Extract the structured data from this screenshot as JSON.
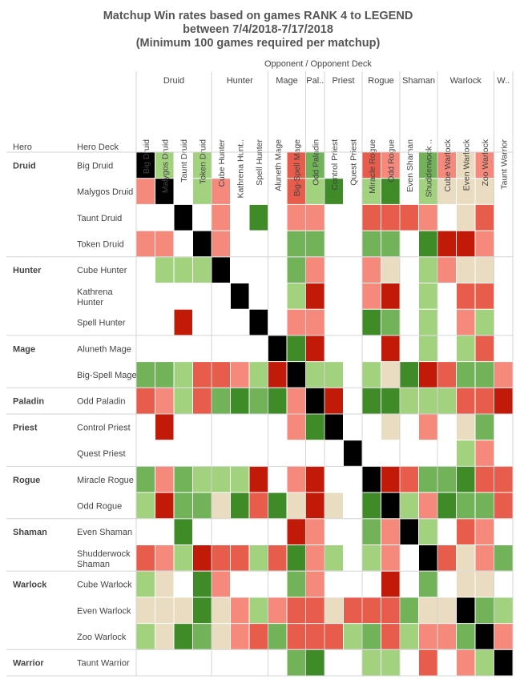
{
  "title": {
    "line1": "Matchup Win rates based on games RANK 4 to LEGEND",
    "line2": "between 7/4/2018-7/17/2018",
    "line3": "(Minimum 100 games required per matchup)"
  },
  "opponent_header": "Opponent  /  Opponent Deck",
  "row_headers": {
    "hero": "Hero",
    "deck": "Hero Deck"
  },
  "chart_data": {
    "type": "heatmap",
    "column_groups": [
      {
        "label": "Druid",
        "count": 4
      },
      {
        "label": "Hunter",
        "count": 3
      },
      {
        "label": "Mage",
        "count": 2
      },
      {
        "label": "Pal..",
        "count": 1
      },
      {
        "label": "Priest",
        "count": 2
      },
      {
        "label": "Rogue",
        "count": 2
      },
      {
        "label": "Shaman",
        "count": 2
      },
      {
        "label": "Warlock",
        "count": 3
      },
      {
        "label": "W..",
        "count": 1
      }
    ],
    "columns": [
      "Big Druid",
      "Malygos Druid",
      "Taunt Druid",
      "Token Druid",
      "Cube Hunter",
      "Kathrena Hunt..",
      "Spell Hunter",
      "Aluneth Mage",
      "Big-Spell Mage",
      "Odd Paladin",
      "Control Priest",
      "Quest Priest",
      "Miracle Rogue",
      "Odd Rogue",
      "Even Shaman",
      "Shudderwock ..",
      "Cube Warlock",
      "Even Warlock",
      "Zoo Warlock",
      "Taunt Warrior"
    ],
    "row_groups": [
      {
        "label": "Druid",
        "count": 4
      },
      {
        "label": "Hunter",
        "count": 3
      },
      {
        "label": "Mage",
        "count": 2
      },
      {
        "label": "Paladin",
        "count": 1
      },
      {
        "label": "Priest",
        "count": 2
      },
      {
        "label": "Rogue",
        "count": 2
      },
      {
        "label": "Shaman",
        "count": 2
      },
      {
        "label": "Warlock",
        "count": 3
      },
      {
        "label": "Warrior",
        "count": 1
      }
    ],
    "rows": [
      [
        "Big Druid"
      ],
      [
        "Malygos Druid"
      ],
      [
        "Taunt Druid"
      ],
      [
        "Token Druid"
      ],
      [
        "Cube Hunter"
      ],
      [
        "Kathrena",
        "Hunter"
      ],
      [
        "Spell Hunter"
      ],
      [
        "Aluneth Mage"
      ],
      [
        "Big-Spell Mage"
      ],
      [
        "Odd Paladin"
      ],
      [
        "Control Priest"
      ],
      [
        "Quest Priest"
      ],
      [
        "Miracle Rogue"
      ],
      [
        "Odd Rogue"
      ],
      [
        "Even Shaman"
      ],
      [
        "Shudderwock",
        "Shaman"
      ],
      [
        "Cube Warlock"
      ],
      [
        "Even Warlock"
      ],
      [
        "Zoo Warlock"
      ],
      [
        "Taunt Warrior"
      ]
    ],
    "color_scale": {
      "M": "#000000",
      "G3": "#3f8b27",
      "G2": "#72b35a",
      "G1": "#a3d27f",
      "N": "#e9dcc0",
      "R1": "#f58a7c",
      "R2": "#e85c4b",
      "R3": "#c11a09"
    },
    "cells": [
      [
        "M",
        "G1",
        "",
        "G1",
        "",
        "",
        "",
        "",
        "R2",
        "G2",
        "",
        "",
        "R2",
        "R1",
        "",
        "G2",
        "R1",
        "N",
        "R1",
        ""
      ],
      [
        "R1",
        "M",
        "",
        "G1",
        "R1",
        "",
        "",
        "",
        "R2",
        "G1",
        "G3",
        "",
        "G1",
        "G3",
        "",
        "G1",
        "N",
        "N",
        "N",
        ""
      ],
      [
        "",
        "",
        "M",
        "",
        "R1",
        "",
        "G3",
        "",
        "R1",
        "R1",
        "",
        "",
        "R2",
        "R2",
        "R2",
        "R1",
        "",
        "N",
        "R2",
        ""
      ],
      [
        "R1",
        "R1",
        "",
        "M",
        "R1",
        "",
        "",
        "",
        "G2",
        "G2",
        "",
        "",
        "G2",
        "G2",
        "",
        "G3",
        "R3",
        "R3",
        "R1",
        ""
      ],
      [
        "",
        "G1",
        "G1",
        "G1",
        "M",
        "",
        "",
        "",
        "G2",
        "R1",
        "",
        "",
        "R1",
        "N",
        "",
        "G1",
        "R1",
        "N",
        "N",
        ""
      ],
      [
        "",
        "",
        "",
        "",
        "",
        "M",
        "",
        "",
        "G1",
        "R3",
        "",
        "",
        "R1",
        "R3",
        "",
        "G1",
        "",
        "R2",
        "R2",
        ""
      ],
      [
        "",
        "",
        "R3",
        "",
        "",
        "",
        "M",
        "",
        "R1",
        "R1",
        "",
        "",
        "G3",
        "G2",
        "",
        "G1",
        "",
        "R1",
        "G1",
        ""
      ],
      [
        "",
        "",
        "",
        "",
        "",
        "",
        "",
        "M",
        "G3",
        "R3",
        "",
        "",
        "",
        "R3",
        "",
        "G1",
        "",
        "G1",
        "R2",
        ""
      ],
      [
        "G2",
        "G2",
        "G1",
        "R2",
        "R2",
        "R1",
        "G1",
        "R3",
        "M",
        "G1",
        "G1",
        "",
        "G1",
        "N",
        "G3",
        "R3",
        "R2",
        "G2",
        "G2",
        "R1"
      ],
      [
        "R2",
        "R1",
        "G1",
        "R2",
        "G2",
        "G3",
        "G2",
        "G3",
        "R1",
        "M",
        "R3",
        "",
        "G3",
        "G3",
        "G1",
        "G1",
        "G1",
        "R2",
        "R2",
        "R3"
      ],
      [
        "",
        "R3",
        "",
        "",
        "",
        "",
        "",
        "",
        "R1",
        "G3",
        "M",
        "",
        "",
        "N",
        "",
        "R1",
        "",
        "N",
        "G2",
        ""
      ],
      [
        "",
        "",
        "",
        "",
        "",
        "",
        "",
        "",
        "",
        "",
        "",
        "M",
        "",
        "",
        "",
        "",
        "",
        "G1",
        "R1",
        ""
      ],
      [
        "G2",
        "R1",
        "G2",
        "G1",
        "G1",
        "G1",
        "R3",
        "",
        "R1",
        "R3",
        "",
        "",
        "M",
        "R3",
        "R2",
        "G2",
        "G2",
        "G3",
        "R2",
        "R2"
      ],
      [
        "G1",
        "R3",
        "G2",
        "G2",
        "N",
        "G3",
        "R2",
        "G3",
        "N",
        "R3",
        "N",
        "",
        "G3",
        "M",
        "G1",
        "R1",
        "G3",
        "G2",
        "G2",
        "R2"
      ],
      [
        "",
        "",
        "G3",
        "",
        "",
        "",
        "",
        "",
        "R3",
        "R1",
        "",
        "",
        "G2",
        "R1",
        "M",
        "G1",
        "",
        "R2",
        "R1",
        ""
      ],
      [
        "R2",
        "R1",
        "G1",
        "R3",
        "R2",
        "R2",
        "G1",
        "R2",
        "G3",
        "R1",
        "G1",
        "",
        "G1",
        "R1",
        "",
        "M",
        "R2",
        "N",
        "R1",
        "G2"
      ],
      [
        "G1",
        "N",
        "",
        "G3",
        "R1",
        "",
        "",
        "",
        "G2",
        "R1",
        "",
        "",
        "",
        "R3",
        "",
        "G2",
        "",
        "N",
        "N",
        ""
      ],
      [
        "N",
        "N",
        "N",
        "G3",
        "N",
        "R1",
        "G1",
        "R1",
        "R2",
        "R2",
        "N",
        "R2",
        "R2",
        "R2",
        "G2",
        "N",
        "N",
        "M",
        "G2",
        "G1"
      ],
      [
        "G1",
        "N",
        "G3",
        "G2",
        "N",
        "R1",
        "R2",
        "G2",
        "R2",
        "R2",
        "R2",
        "G1",
        "G2",
        "R2",
        "G1",
        "R1",
        "R1",
        "G2",
        "M",
        "R1"
      ],
      [
        "",
        "",
        "",
        "",
        "",
        "",
        "",
        "",
        "G2",
        "G3",
        "",
        "",
        "G1",
        "G1",
        "",
        "R2",
        "",
        "R1",
        "G1",
        "M"
      ]
    ]
  }
}
